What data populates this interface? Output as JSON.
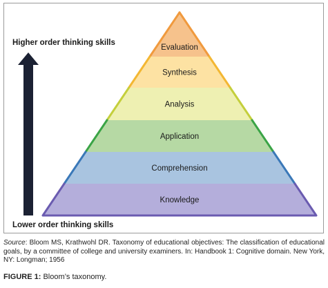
{
  "arrow": {
    "top_label": "Higher order thinking skills",
    "bottom_label": "Lower order thinking skills",
    "color": "#1b2133"
  },
  "pyramid": {
    "levels": [
      {
        "label": "Evaluation",
        "fill": "#f6c28c",
        "edge": "#f09a3e"
      },
      {
        "label": "Synthesis",
        "fill": "#fde2a3",
        "edge": "#f3b733"
      },
      {
        "label": "Analysis",
        "fill": "#eef0b2",
        "edge": "#c4cf3c"
      },
      {
        "label": "Application",
        "fill": "#b6d9a4",
        "edge": "#3aa446"
      },
      {
        "label": "Comprehension",
        "fill": "#a9c4e0",
        "edge": "#3a78b8"
      },
      {
        "label": "Knowledge",
        "fill": "#b4aedb",
        "edge": "#6a5bb0"
      }
    ]
  },
  "source": {
    "label": "Source",
    "text": ": Bloom MS, Krathwohl DR. Taxonomy of educational objectives: The classification of educational goals, by a committee of college and university examiners. In: Handbook 1: Cognitive domain. New York, NY: Longman; 1956"
  },
  "caption": {
    "label": "FIGURE 1:",
    "text": " Bloom’s taxonomy."
  }
}
